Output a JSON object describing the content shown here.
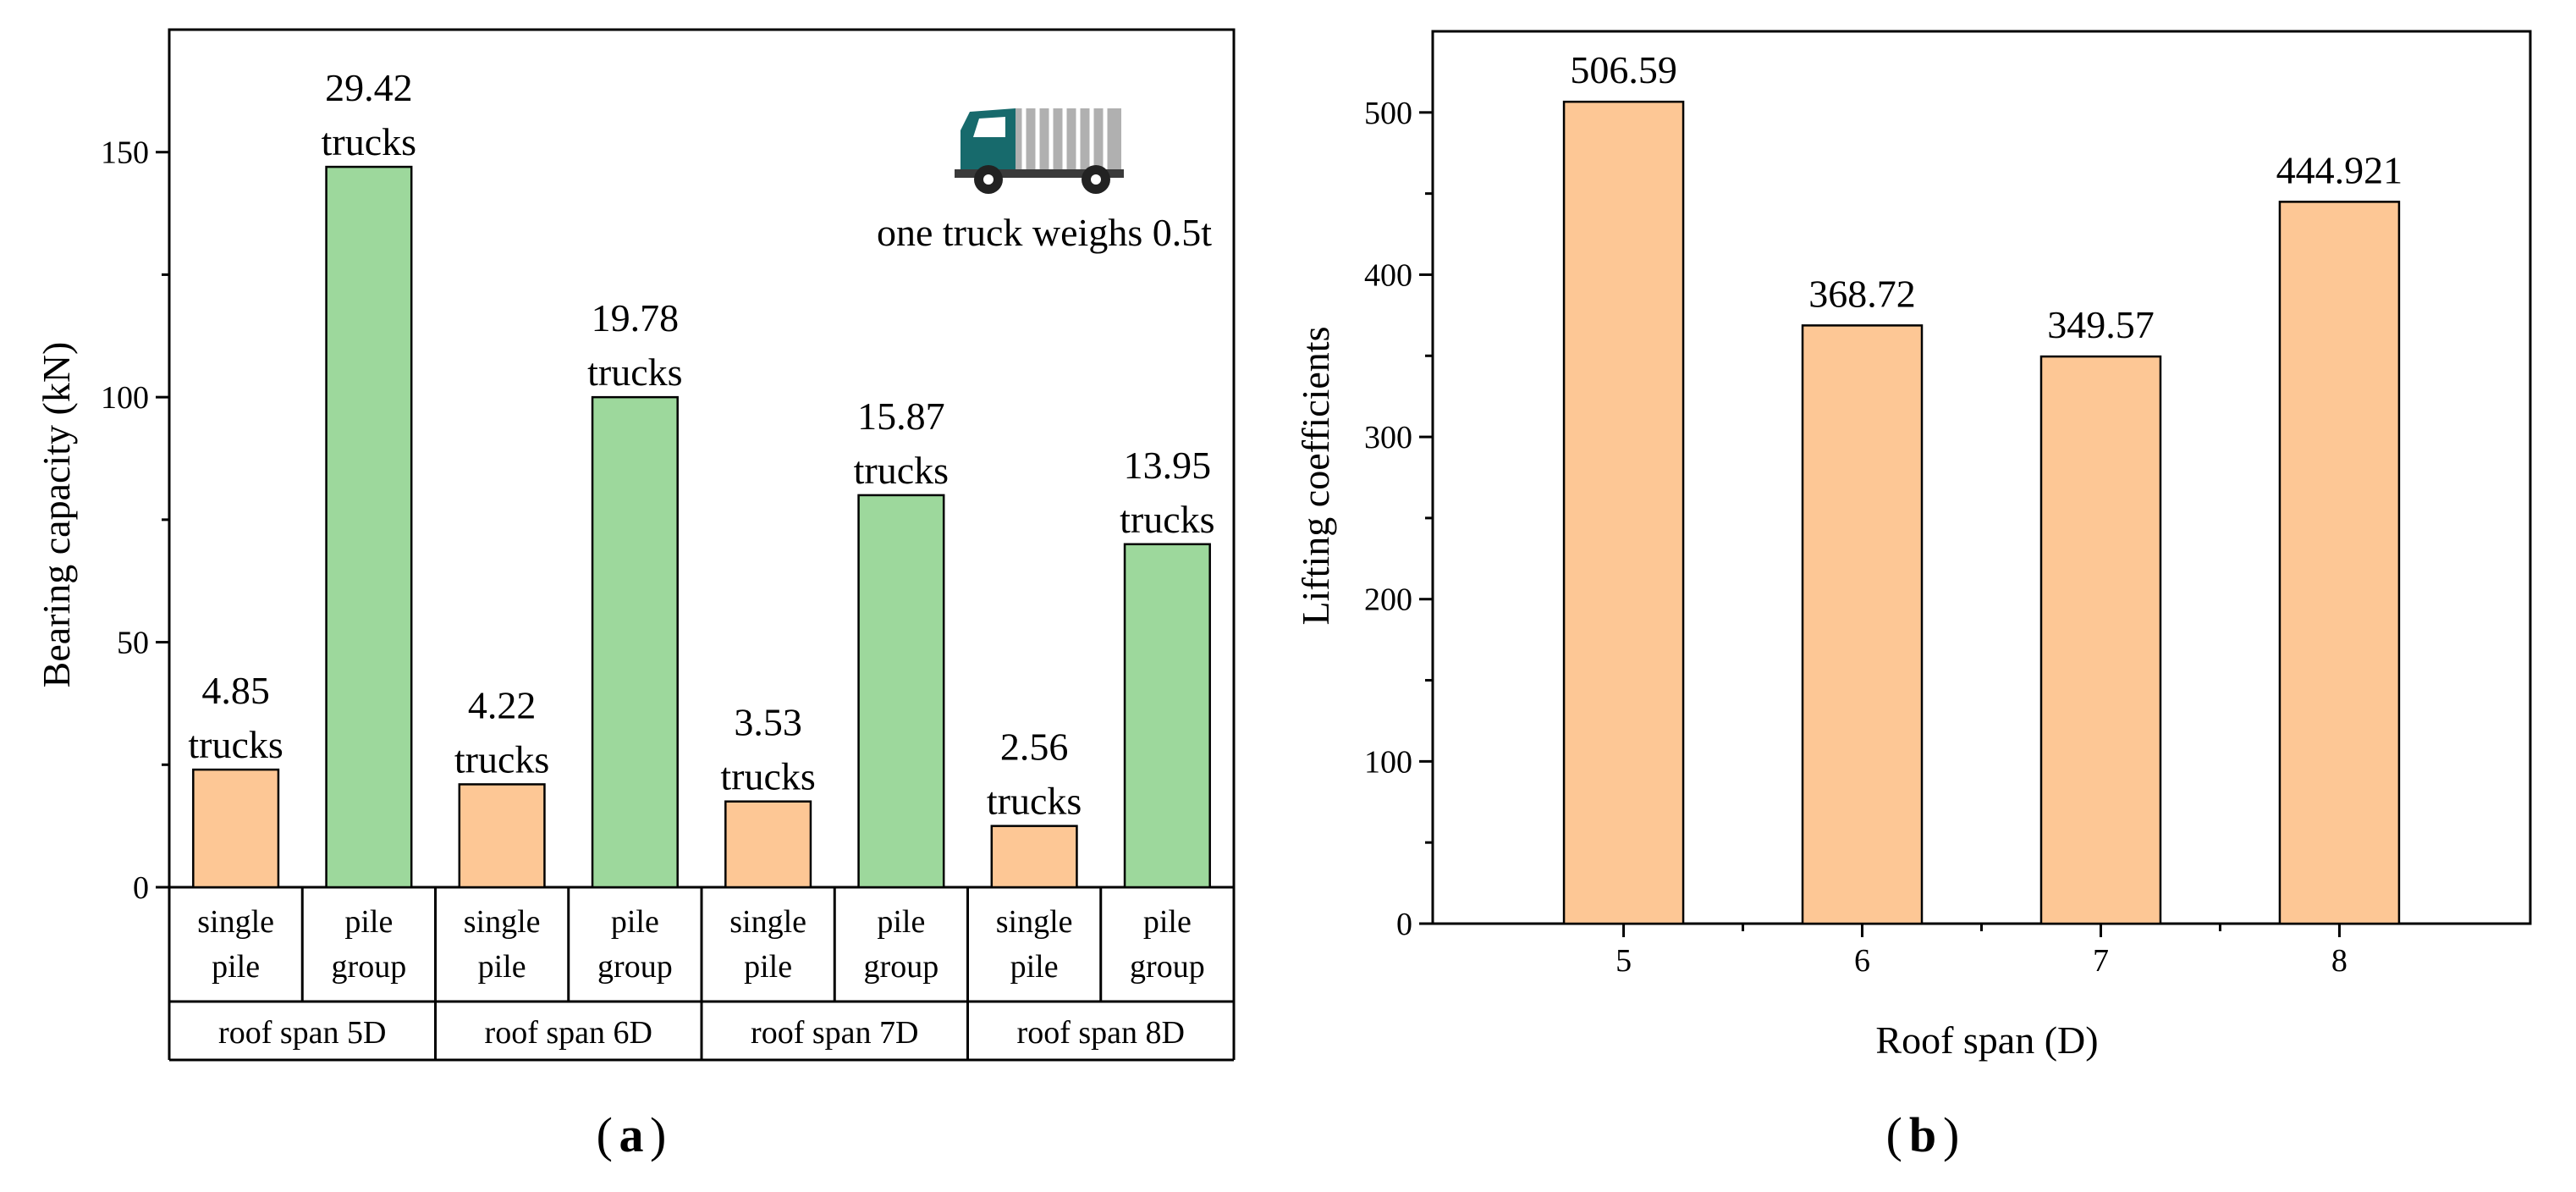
{
  "chart_data": [
    {
      "type": "bar",
      "panel_label": "a",
      "ylabel": "Bearing capacity (kN)",
      "ylim": [
        0,
        175
      ],
      "yticks": [
        0,
        50,
        100,
        150
      ],
      "categories": [
        "single pile",
        "pile group",
        "single pile",
        "pile group",
        "single pile",
        "pile group",
        "single pile",
        "pile group"
      ],
      "cat_lines": [
        [
          "single",
          "pile"
        ],
        [
          "pile",
          "group"
        ],
        [
          "single",
          "pile"
        ],
        [
          "pile",
          "group"
        ],
        [
          "single",
          "pile"
        ],
        [
          "pile",
          "group"
        ],
        [
          "single",
          "pile"
        ],
        [
          "pile",
          "group"
        ]
      ],
      "groups": [
        "roof span 5D",
        "roof span 6D",
        "roof span 7D",
        "roof span 8D"
      ],
      "values": [
        24,
        147,
        21,
        100,
        17.5,
        80,
        12.5,
        70
      ],
      "data_labels": [
        [
          "4.85",
          "trucks"
        ],
        [
          "29.42",
          "trucks"
        ],
        [
          "4.22",
          "trucks"
        ],
        [
          "19.78",
          "trucks"
        ],
        [
          "3.53",
          "trucks"
        ],
        [
          "15.87",
          "trucks"
        ],
        [
          "2.56",
          "trucks"
        ],
        [
          "13.95",
          "trucks"
        ]
      ],
      "colors": {
        "single": "#fdc795",
        "group": "#9dd89c",
        "truck_cab": "#176a6c",
        "truck_body": "#b0b0b0"
      },
      "annotation": "one truck weighs 0.5t",
      "annotation_icon": "truck-icon"
    },
    {
      "type": "bar",
      "panel_label": "b",
      "xlabel": "Roof span (D)",
      "ylabel": "Lifting coefficients",
      "ylim": [
        0,
        550
      ],
      "yticks": [
        0,
        100,
        200,
        300,
        400,
        500
      ],
      "categories": [
        "5",
        "6",
        "7",
        "8"
      ],
      "values": [
        506.59,
        368.72,
        349.57,
        444.921
      ],
      "data_labels": [
        "506.59",
        "368.72",
        "349.57",
        "444.921"
      ],
      "colors": {
        "bar": "#fdc795"
      }
    }
  ]
}
